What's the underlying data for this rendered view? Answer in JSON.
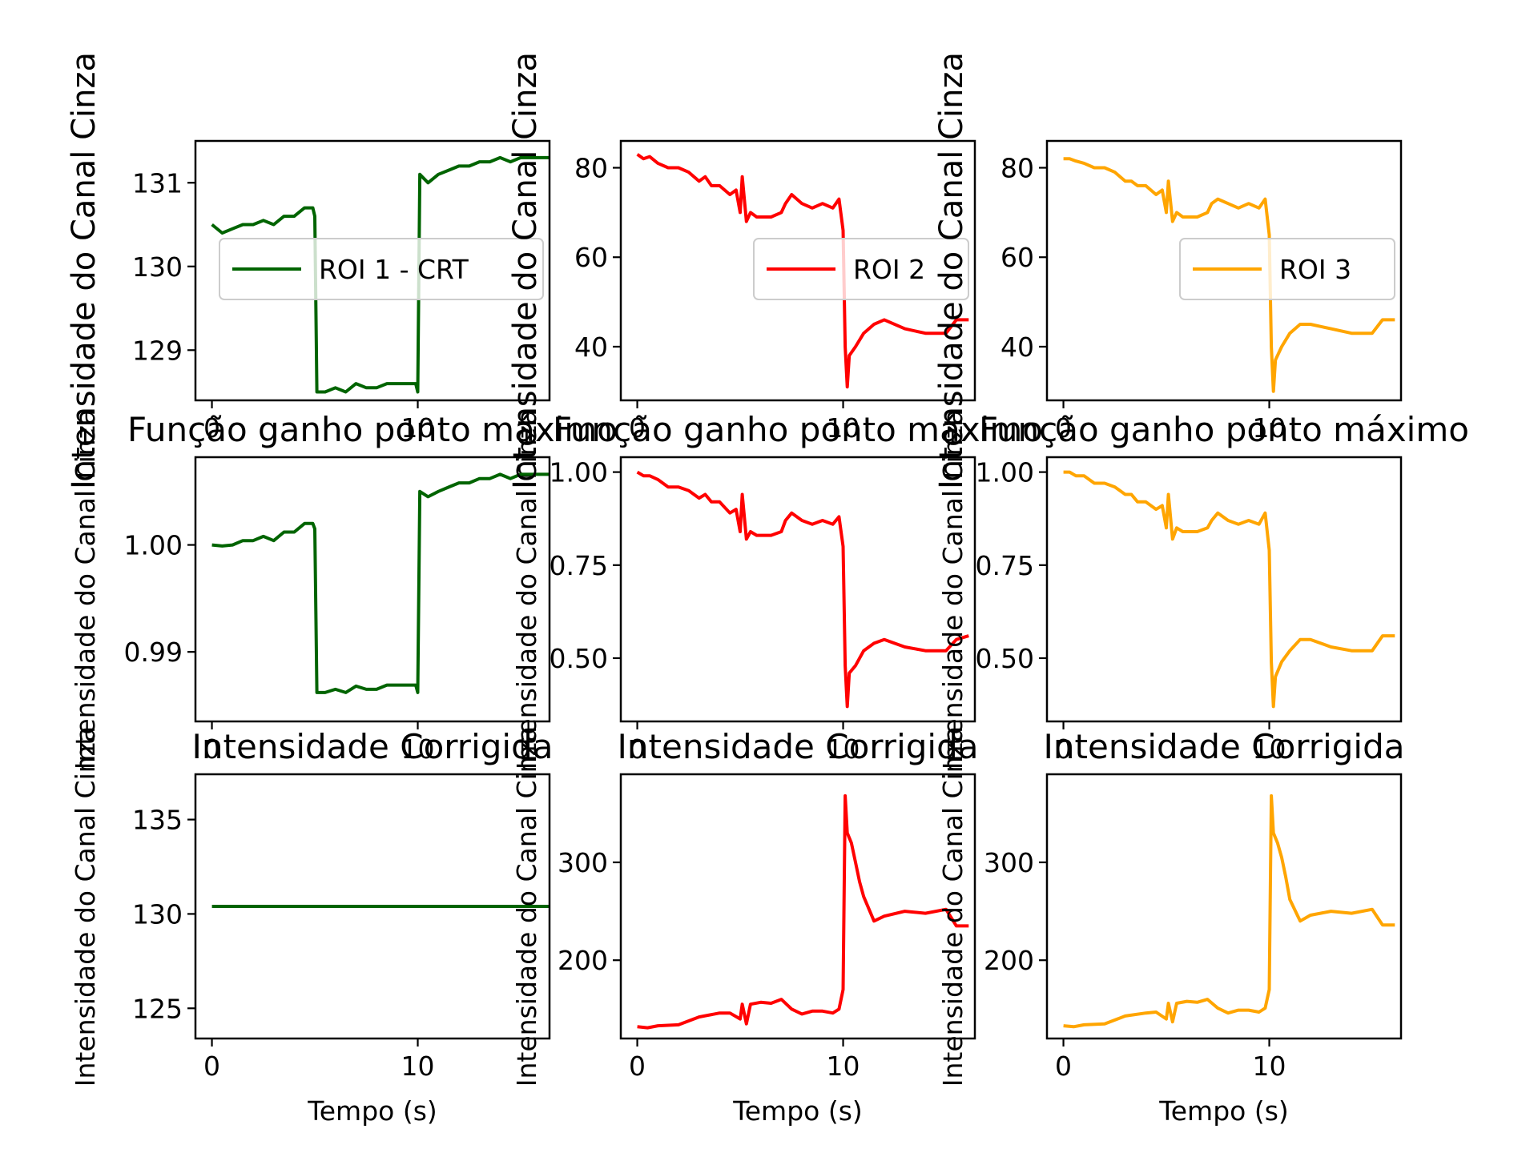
{
  "figure": {
    "xlabel_bottom": "Tempo (s)",
    "ylabel": "Intensidade do Canal Cinza",
    "row_titles": [
      "Função ganho ponto máximo",
      "Intensidade Corrigida"
    ]
  },
  "chart_data": [
    {
      "type": "line",
      "panel": "row1-col1",
      "series": [
        {
          "name": "ROI 1 - CRT",
          "color": "#006400",
          "x": [
            0,
            0.5,
            1,
            1.5,
            2,
            2.5,
            3,
            3.5,
            4,
            4.5,
            4.9,
            5.0,
            5.1,
            5.5,
            6,
            6.5,
            7,
            7.5,
            8,
            8.5,
            9,
            9.5,
            9.9,
            10.0,
            10.1,
            10.5,
            11,
            11.5,
            12,
            12.5,
            13,
            13.5,
            14,
            14.5,
            15,
            15.5,
            16.4
          ],
          "y": [
            130.5,
            130.4,
            130.45,
            130.5,
            130.5,
            130.55,
            130.5,
            130.6,
            130.6,
            130.7,
            130.7,
            130.6,
            128.5,
            128.5,
            128.55,
            128.5,
            128.6,
            128.55,
            128.55,
            128.6,
            128.6,
            128.6,
            128.6,
            128.5,
            131.1,
            131.0,
            131.1,
            131.15,
            131.2,
            131.2,
            131.25,
            131.25,
            131.3,
            131.25,
            131.3,
            131.3,
            131.3
          ]
        }
      ],
      "xticks": [
        "0",
        "10"
      ],
      "yticks": [
        "129",
        "130",
        "131"
      ],
      "xlim": [
        -0.8,
        16.4
      ],
      "ylim": [
        128.4,
        131.5
      ],
      "legend": "center-right"
    },
    {
      "type": "line",
      "panel": "row1-col2",
      "series": [
        {
          "name": "ROI 2",
          "color": "#ff0000",
          "x": [
            0,
            0.3,
            0.6,
            1,
            1.5,
            2,
            2.5,
            3,
            3.3,
            3.6,
            4,
            4.5,
            4.8,
            5.0,
            5.1,
            5.3,
            5.5,
            5.8,
            6,
            6.5,
            7,
            7.2,
            7.5,
            8,
            8.5,
            9,
            9.5,
            9.8,
            10.0,
            10.1,
            10.2,
            10.3,
            10.6,
            11,
            11.5,
            12,
            13,
            14,
            15,
            15.5,
            16.1
          ],
          "y": [
            83,
            82,
            82.5,
            81,
            80,
            80,
            79,
            77,
            78,
            76,
            76,
            74,
            75,
            70,
            78,
            68,
            70,
            69,
            69,
            69,
            70,
            72,
            74,
            72,
            71,
            72,
            71,
            73,
            66,
            40,
            31,
            38,
            40,
            43,
            45,
            46,
            44,
            43,
            43,
            46,
            46
          ]
        }
      ],
      "xticks": [
        "0",
        "10"
      ],
      "yticks": [
        "40",
        "60",
        "80"
      ],
      "xlim": [
        -0.8,
        16.4
      ],
      "ylim": [
        28,
        86
      ],
      "legend": "center-right"
    },
    {
      "type": "line",
      "panel": "row1-col3",
      "series": [
        {
          "name": "ROI 3",
          "color": "#ffa500",
          "x": [
            0,
            0.3,
            0.6,
            1,
            1.5,
            2,
            2.5,
            3,
            3.3,
            3.6,
            4,
            4.5,
            4.8,
            5.0,
            5.1,
            5.3,
            5.5,
            5.8,
            6,
            6.5,
            7,
            7.2,
            7.5,
            8,
            8.5,
            9,
            9.5,
            9.8,
            10.0,
            10.1,
            10.2,
            10.3,
            10.6,
            11,
            11.5,
            12,
            13,
            14,
            15,
            15.5,
            16.1
          ],
          "y": [
            82,
            82,
            81.5,
            81,
            80,
            80,
            79,
            77,
            77,
            76,
            76,
            74,
            75,
            70,
            77,
            68,
            70,
            69,
            69,
            69,
            70,
            72,
            73,
            72,
            71,
            72,
            71,
            73,
            65,
            40,
            30,
            37,
            40,
            43,
            45,
            45,
            44,
            43,
            43,
            46,
            46
          ]
        }
      ],
      "xticks": [
        "0",
        "10"
      ],
      "yticks": [
        "40",
        "60",
        "80"
      ],
      "xlim": [
        -0.8,
        16.4
      ],
      "ylim": [
        28,
        86
      ],
      "legend": "center-right"
    },
    {
      "type": "line",
      "panel": "row2-col1",
      "title": "Função ganho ponto máximo",
      "series": [
        {
          "color": "#006400",
          "x": [
            0,
            0.5,
            1,
            1.5,
            2,
            2.5,
            3,
            3.5,
            4,
            4.5,
            4.9,
            5.0,
            5.1,
            5.5,
            6,
            6.5,
            7,
            7.5,
            8,
            8.5,
            9,
            9.5,
            9.9,
            10.0,
            10.1,
            10.5,
            11,
            11.5,
            12,
            12.5,
            13,
            13.5,
            14,
            14.5,
            15,
            15.5,
            16.4
          ],
          "y": [
            1.0,
            0.9999,
            1.0,
            1.0004,
            1.0004,
            1.0008,
            1.0004,
            1.0012,
            1.0012,
            1.002,
            1.002,
            1.0015,
            0.9862,
            0.9862,
            0.9865,
            0.9862,
            0.9868,
            0.9865,
            0.9865,
            0.9869,
            0.9869,
            0.9869,
            0.9869,
            0.9862,
            1.005,
            1.0045,
            1.005,
            1.0054,
            1.0058,
            1.0058,
            1.0062,
            1.0062,
            1.0066,
            1.0062,
            1.0066,
            1.0066,
            1.0066
          ]
        }
      ],
      "xticks": [
        "0",
        "10"
      ],
      "yticks": [
        "0.99",
        "1.00"
      ],
      "xlim": [
        -0.8,
        16.4
      ],
      "ylim": [
        0.9835,
        1.0082
      ]
    },
    {
      "type": "line",
      "panel": "row2-col2",
      "title": "Função ganho ponto máximo",
      "series": [
        {
          "color": "#ff0000",
          "x": [
            0,
            0.3,
            0.6,
            1,
            1.5,
            2,
            2.5,
            3,
            3.3,
            3.6,
            4,
            4.5,
            4.8,
            5.0,
            5.1,
            5.3,
            5.5,
            5.8,
            6,
            6.5,
            7,
            7.2,
            7.5,
            8,
            8.5,
            9,
            9.5,
            9.8,
            10.0,
            10.1,
            10.2,
            10.3,
            10.6,
            11,
            11.5,
            12,
            13,
            14,
            15,
            15.5,
            16.1
          ],
          "y": [
            1.0,
            0.99,
            0.99,
            0.98,
            0.96,
            0.96,
            0.95,
            0.93,
            0.94,
            0.92,
            0.92,
            0.89,
            0.9,
            0.84,
            0.94,
            0.82,
            0.84,
            0.83,
            0.83,
            0.83,
            0.84,
            0.87,
            0.89,
            0.87,
            0.86,
            0.87,
            0.86,
            0.88,
            0.8,
            0.48,
            0.37,
            0.46,
            0.48,
            0.52,
            0.54,
            0.55,
            0.53,
            0.52,
            0.52,
            0.55,
            0.56
          ]
        }
      ],
      "xticks": [
        "0",
        "10"
      ],
      "yticks": [
        "0.50",
        "0.75",
        "1.00"
      ],
      "xlim": [
        -0.8,
        16.4
      ],
      "ylim": [
        0.33,
        1.04
      ]
    },
    {
      "type": "line",
      "panel": "row2-col3",
      "title": "Função ganho ponto máximo",
      "series": [
        {
          "color": "#ffa500",
          "x": [
            0,
            0.3,
            0.6,
            1,
            1.5,
            2,
            2.5,
            3,
            3.3,
            3.6,
            4,
            4.5,
            4.8,
            5.0,
            5.1,
            5.3,
            5.5,
            5.8,
            6,
            6.5,
            7,
            7.2,
            7.5,
            8,
            8.5,
            9,
            9.5,
            9.8,
            10.0,
            10.1,
            10.2,
            10.3,
            10.6,
            11,
            11.5,
            12,
            13,
            14,
            15,
            15.5,
            16.1
          ],
          "y": [
            1.0,
            1.0,
            0.99,
            0.99,
            0.97,
            0.97,
            0.96,
            0.94,
            0.94,
            0.92,
            0.92,
            0.9,
            0.91,
            0.85,
            0.94,
            0.82,
            0.85,
            0.84,
            0.84,
            0.84,
            0.85,
            0.87,
            0.89,
            0.87,
            0.86,
            0.87,
            0.86,
            0.89,
            0.79,
            0.49,
            0.37,
            0.45,
            0.49,
            0.52,
            0.55,
            0.55,
            0.53,
            0.52,
            0.52,
            0.56,
            0.56
          ]
        }
      ],
      "xticks": [
        "0",
        "10"
      ],
      "yticks": [
        "0.50",
        "0.75",
        "1.00"
      ],
      "xlim": [
        -0.8,
        16.4
      ],
      "ylim": [
        0.33,
        1.04
      ]
    },
    {
      "type": "line",
      "panel": "row3-col1",
      "title": "Intensidade Corrigida",
      "series": [
        {
          "color": "#006400",
          "x": [
            0,
            16.4
          ],
          "y": [
            130.4,
            130.4
          ]
        }
      ],
      "xticks": [
        "0",
        "10"
      ],
      "yticks": [
        "125",
        "130",
        "135"
      ],
      "xlim": [
        -0.8,
        16.4
      ],
      "ylim": [
        123.4,
        137.4
      ]
    },
    {
      "type": "line",
      "panel": "row3-col2",
      "title": "Intensidade Corrigida",
      "series": [
        {
          "color": "#ff0000",
          "x": [
            0,
            0.5,
            1,
            2,
            3,
            4,
            4.5,
            5,
            5.1,
            5.3,
            5.5,
            6,
            6.5,
            7,
            7.5,
            8,
            8.5,
            9,
            9.5,
            9.8,
            10.0,
            10.1,
            10.2,
            10.4,
            10.6,
            10.8,
            11,
            11.5,
            12,
            13,
            14,
            15,
            15.5,
            16.1
          ],
          "y": [
            132,
            131,
            133,
            134,
            142,
            146,
            146,
            140,
            155,
            135,
            155,
            157,
            156,
            160,
            150,
            145,
            148,
            148,
            146,
            150,
            170,
            368,
            330,
            320,
            300,
            280,
            265,
            240,
            245,
            250,
            248,
            252,
            235,
            235
          ]
        }
      ],
      "xticks": [
        "0",
        "10"
      ],
      "yticks": [
        "200",
        "300"
      ],
      "xlim": [
        -0.8,
        16.4
      ],
      "ylim": [
        120,
        390
      ]
    },
    {
      "type": "line",
      "panel": "row3-col3",
      "title": "Intensidade Corrigida",
      "series": [
        {
          "color": "#ffa500",
          "x": [
            0,
            0.5,
            1,
            2,
            3,
            4,
            4.5,
            5,
            5.1,
            5.3,
            5.5,
            6,
            6.5,
            7,
            7.5,
            8,
            8.5,
            9,
            9.5,
            9.8,
            10.0,
            10.1,
            10.2,
            10.4,
            10.6,
            10.8,
            11,
            11.5,
            12,
            13,
            14,
            15,
            15.5,
            16.1
          ],
          "y": [
            133,
            132,
            134,
            135,
            143,
            146,
            147,
            140,
            156,
            137,
            156,
            158,
            157,
            160,
            151,
            146,
            149,
            149,
            147,
            151,
            170,
            368,
            330,
            320,
            305,
            285,
            262,
            240,
            246,
            250,
            248,
            252,
            236,
            236
          ]
        }
      ],
      "xticks": [
        "0",
        "10"
      ],
      "yticks": [
        "200",
        "300"
      ],
      "xlim": [
        -0.8,
        16.4
      ],
      "ylim": [
        120,
        390
      ]
    }
  ]
}
